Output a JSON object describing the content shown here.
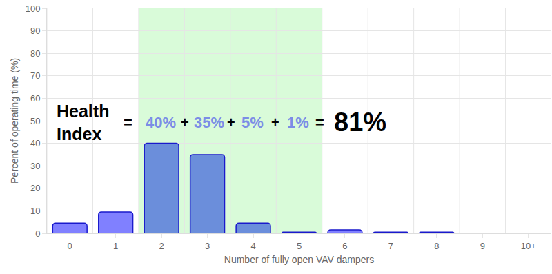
{
  "chart_data": {
    "type": "bar",
    "categories": [
      "0",
      "1",
      "2",
      "3",
      "4",
      "5",
      "6",
      "7",
      "8",
      "9",
      "10+"
    ],
    "values": [
      4.5,
      9.5,
      40,
      35,
      4.5,
      0.5,
      1.5,
      0.5,
      0.5,
      0,
      0
    ],
    "colors": [
      "#8080ff",
      "#8080ff",
      "#6b8edb",
      "#6b8edb",
      "#6b8edb",
      "#6b8edb",
      "#8080ff",
      "#8080ff",
      "#8080ff",
      "#8080ff",
      "#8080ff"
    ],
    "xlabel": "Number of fully open VAV dampers",
    "ylabel": "Percent of operating time (%)",
    "ylim": [
      0,
      100
    ],
    "yticks": [
      0,
      10,
      20,
      30,
      40,
      50,
      60,
      70,
      80,
      90,
      100
    ],
    "grid": true,
    "highlight_categories": [
      "2",
      "3",
      "4",
      "5"
    ],
    "annotation": {
      "label": "Health\nIndex",
      "equals": "=",
      "operator": "+",
      "terms": [
        "40%",
        "35%",
        "5%",
        "1%"
      ],
      "result": "81%"
    }
  }
}
